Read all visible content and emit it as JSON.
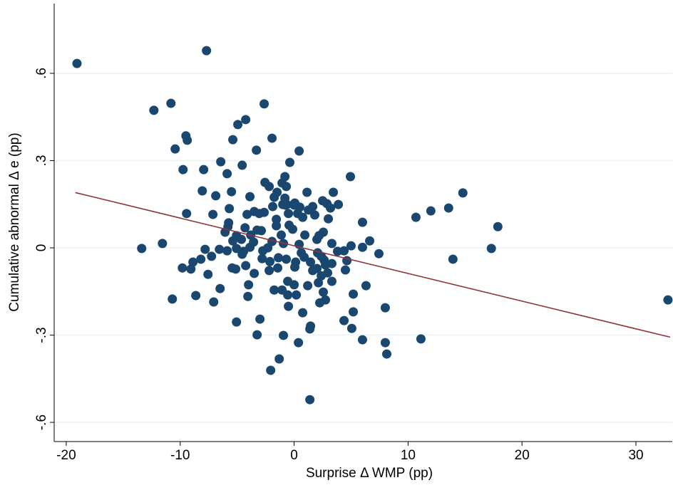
{
  "chart_data": {
    "type": "scatter",
    "xlabel": "Surprise Δ WMP (pp)",
    "ylabel": "Cumulative abnormal Δ e (pp)",
    "xlim": [
      -21.06,
      33.19
    ],
    "ylim": [
      -0.666,
      0.84
    ],
    "xticks": [
      -20,
      -10,
      0,
      10,
      20,
      30
    ],
    "yticks": [
      {
        "value": -0.6,
        "label": "-.6"
      },
      {
        "value": -0.3,
        "label": "-.3"
      },
      {
        "value": 0,
        "label": "0"
      },
      {
        "value": 0.3,
        "label": ".3"
      },
      {
        "value": 0.6,
        "label": ".6"
      }
    ],
    "grid": true,
    "color": "#1a476f",
    "fit_color": "#90353b",
    "x": [
      -19.06,
      -7.69,
      -12.31,
      -10.81,
      -2.63,
      -9.5,
      -9.38,
      -10.44,
      -4.25,
      -4.94,
      -5.38,
      -3.31,
      -1.94,
      0.44,
      -0.38,
      -6.44,
      -4.56,
      -9.75,
      -7.94,
      -5.88,
      -2.56,
      -2.19,
      -1.06,
      -0.69,
      4.94,
      -8.06,
      -5.5,
      1.13,
      3.44,
      -6.88,
      -3.88,
      -1.75,
      14.81,
      13.56,
      12.0,
      10.69,
      17.88,
      17.31,
      13.94,
      11.13,
      32.81,
      1.38,
      -2.06,
      -1.31,
      -3.25,
      -0.94,
      -5.06,
      -3.0,
      0.38,
      1.38,
      1.44,
      6.0,
      8.0,
      8.13,
      5.06,
      4.38,
      5.19,
      8.0,
      5.19,
      6.31,
      2.56,
      2.75,
      2.25,
      0.75,
      -10.69,
      -8.63,
      -7.06,
      -6.5,
      -4.06,
      -4.0,
      -1.75,
      -1.06,
      -0.56,
      0.19,
      -0.5,
      0,
      1.19,
      2.13,
      1.63,
      3.31,
      2.38,
      2.75,
      4.5,
      4.63,
      7.44,
      6.0,
      6.63,
      6.0,
      5.0,
      3.31,
      3.81,
      4.38,
      -9.44,
      -7.13,
      -13.38,
      -11.56,
      -9.81,
      -9.06,
      -8.88,
      -8.19,
      -7.81,
      -7.56,
      -7.25,
      -6.56,
      -6.06,
      -5.81,
      -5.69,
      -5.44,
      -5.13,
      -4.31,
      -4.13,
      -3.5,
      -3.25,
      -2.88,
      -2.19,
      -1.88,
      -1.0,
      -0.81,
      -5.75,
      -5.06,
      -4.63,
      -3.81,
      -3.56,
      -2.63,
      -2.31,
      -1.56,
      -1.38,
      -1.13,
      -0.75,
      -0.5,
      -0.44,
      -0.13,
      0.06,
      0.31,
      0.5,
      0.75,
      0.94,
      1.25,
      1.63,
      1.81,
      2.0,
      2.5,
      3.0,
      2.56,
      2.19,
      0.44,
      0.88,
      1.44,
      2.0,
      0.13,
      -0.69,
      -1.44,
      -2.13,
      -2.81,
      -3.88,
      -4.44,
      -5.06,
      -1.5,
      -0.81,
      -0.63,
      0,
      2.88,
      3.19,
      3.88,
      2.63,
      3.31,
      2.06,
      2.94,
      0.06,
      0.63,
      -2.75,
      -3.5,
      -0.94,
      -1.94,
      -1.56,
      -3.06,
      -4.25,
      -4.56,
      -5.88,
      -5.38,
      -0.56,
      2.38
    ],
    "y": [
      0.634,
      0.678,
      0.473,
      0.497,
      0.495,
      0.385,
      0.37,
      0.34,
      0.441,
      0.424,
      0.372,
      0.336,
      0.377,
      0.333,
      0.294,
      0.296,
      0.284,
      0.269,
      0.269,
      0.255,
      0.225,
      0.211,
      0.223,
      0.211,
      0.245,
      0.196,
      0.193,
      0.191,
      0.191,
      0.179,
      0.176,
      0.174,
      0.189,
      0.137,
      0.127,
      0.105,
      0.073,
      -0.002,
      -0.039,
      -0.313,
      -0.179,
      -0.522,
      -0.421,
      -0.382,
      -0.299,
      -0.301,
      -0.255,
      -0.245,
      -0.326,
      -0.279,
      -0.269,
      -0.316,
      -0.326,
      -0.365,
      -0.277,
      -0.25,
      -0.22,
      -0.206,
      -0.159,
      -0.13,
      -0.152,
      -0.179,
      -0.189,
      -0.223,
      -0.176,
      -0.164,
      -0.186,
      -0.14,
      -0.167,
      -0.127,
      -0.145,
      -0.145,
      -0.162,
      -0.162,
      -0.201,
      -0.127,
      -0.13,
      -0.12,
      -0.078,
      -0.115,
      -0.096,
      -0.059,
      -0.076,
      -0.044,
      -0.02,
      0.002,
      0.024,
      0.088,
      0.007,
      0.015,
      -0.012,
      -0.01,
      0.118,
      0.115,
      -0.002,
      0.015,
      -0.069,
      -0.073,
      -0.049,
      -0.039,
      -0.005,
      -0.091,
      -0.029,
      -0.005,
      0.054,
      0.073,
      0.135,
      -0.069,
      -0.073,
      0.069,
      0.115,
      0.125,
      0.061,
      0.059,
      -0.078,
      0.142,
      0.149,
      0.171,
      0.086,
      -0.002,
      0.029,
      0.044,
      0.02,
      0.122,
      0.0,
      0.098,
      -0.034,
      0.044,
      0.147,
      0.118,
      0.078,
      0.064,
      0.154,
      0.118,
      0.14,
      0.105,
      0.044,
      0.13,
      0.142,
      0.113,
      0.029,
      0.162,
      0.1,
      0.054,
      0.042,
      0.012,
      -0.032,
      -0.049,
      -0.071,
      -0.049,
      -0.039,
      -0.069,
      -0.047,
      -0.037,
      0.002,
      -0.012,
      0.042,
      0.191,
      0.245,
      0.149,
      0.147,
      0.152,
      0.137,
      0.149,
      -0.042,
      -0.054,
      -0.017,
      -0.086,
      -0.066,
      -0.017,
      -0.01,
      -0.088,
      0.015,
      0.022,
      0.076,
      0.118,
      -0.061,
      -0.022,
      -0.01,
      0.024,
      -0.115,
      -0.029
    ],
    "fit": {
      "x": [
        -19.2,
        33
      ],
      "y": [
        0.19,
        -0.307
      ]
    }
  }
}
